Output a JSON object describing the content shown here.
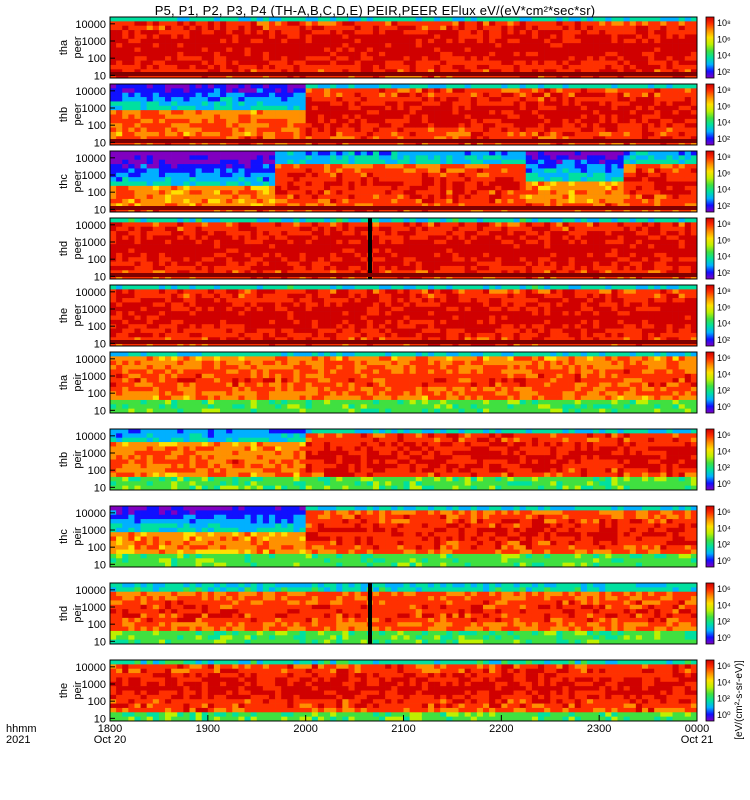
{
  "title": "P5, P1, P2, P3, P4 (TH-A,B,C,D,E) PEIR,PEER EFlux eV/(eV*cm²*sec*sr)",
  "colormap": [
    "#8000c0",
    "#1010ff",
    "#00b0ff",
    "#00e0a0",
    "#40e040",
    "#c0f000",
    "#ffe000",
    "#ff9000",
    "#ff3000",
    "#d00000"
  ],
  "chart_data": {
    "type": "heatmap",
    "x": {
      "tick_labels": [
        "1800",
        "1900",
        "2000",
        "2100",
        "2200",
        "2300",
        "0000"
      ],
      "sub_labels": [
        "Oct 20",
        "",
        "",
        "",
        "",
        "",
        "Oct 21"
      ],
      "row_labels": [
        "hhmm",
        "2021"
      ]
    },
    "y_tick_labels": [
      "10000",
      "1000",
      "100",
      "10"
    ],
    "ylim_eV": [
      7,
      25000
    ],
    "cbar_label": "[eV/(cm²-s-sr-eV)]",
    "panels": [
      {
        "probe": "tha",
        "species": "peer",
        "pattern": "dense",
        "cbar_ticks": [
          "10⁸",
          "10⁶",
          "10⁴",
          "10²"
        ]
      },
      {
        "probe": "thb",
        "species": "peer",
        "pattern": "shift",
        "cbar_ticks": [
          "10⁸",
          "10⁶",
          "10⁴",
          "10²"
        ]
      },
      {
        "probe": "thc",
        "species": "peer",
        "pattern": "lowfill",
        "cbar_ticks": [
          "10⁸",
          "10⁶",
          "10⁴",
          "10²"
        ]
      },
      {
        "probe": "thd",
        "species": "peer",
        "pattern": "dense_gap",
        "cbar_ticks": [
          "10⁸",
          "10⁶",
          "10⁴",
          "10²"
        ]
      },
      {
        "probe": "the",
        "species": "peer",
        "pattern": "dense",
        "cbar_ticks": [
          "10⁸",
          "10⁶",
          "10⁴",
          "10²"
        ]
      },
      {
        "probe": "tha",
        "species": "peir",
        "pattern": "ion",
        "cbar_ticks": [
          "10⁶",
          "10⁴",
          "10²",
          "10⁰"
        ]
      },
      {
        "probe": "thb",
        "species": "peir",
        "pattern": "ion_shift",
        "cbar_ticks": [
          "10⁶",
          "10⁴",
          "10²",
          "10⁰"
        ]
      },
      {
        "probe": "thc",
        "species": "peir",
        "pattern": "ion_low",
        "cbar_ticks": [
          "10⁶",
          "10⁴",
          "10²",
          "10⁰"
        ]
      },
      {
        "probe": "thd",
        "species": "peir",
        "pattern": "ion_gap",
        "cbar_ticks": [
          "10⁶",
          "10⁴",
          "10²",
          "10⁰"
        ]
      },
      {
        "probe": "the",
        "species": "peir",
        "pattern": "ion_dense",
        "cbar_ticks": [
          "10⁶",
          "10⁴",
          "10²",
          "10⁰"
        ]
      }
    ]
  }
}
